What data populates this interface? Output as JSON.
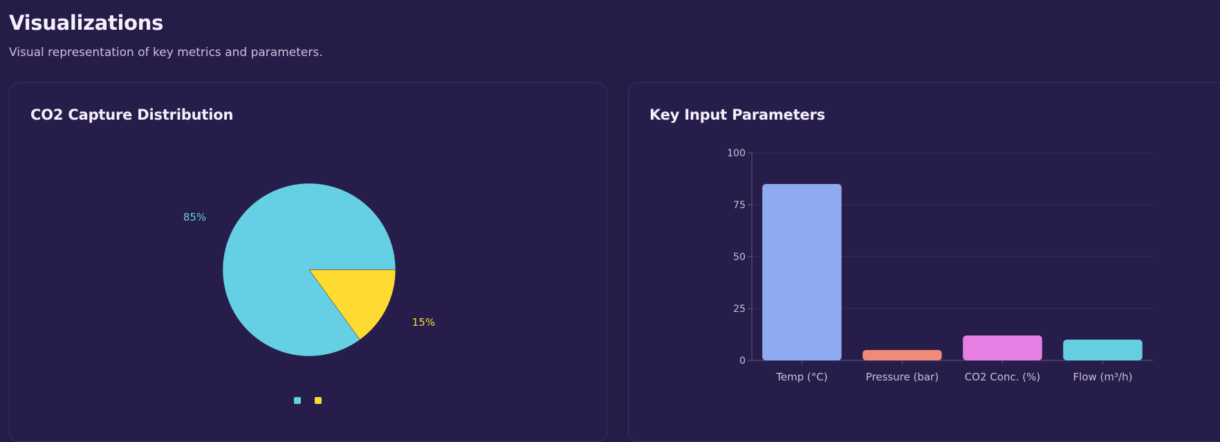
{
  "header": {
    "title": "Visualizations",
    "subtitle": "Visual representation of key metrics and parameters."
  },
  "panels": {
    "left": {
      "title": "CO2 Capture Distribution"
    },
    "right": {
      "title": "Key Input Parameters"
    }
  },
  "colors": {
    "background": "#261c48",
    "pie_captured": "#65cfe3",
    "pie_remaining": "#fddb31",
    "bar_temp": "#8eaaf0",
    "bar_pressure": "#ee8b79",
    "bar_co2": "#e680e5",
    "bar_flow": "#65cee1"
  },
  "chart_data": [
    {
      "type": "pie",
      "title": "CO2 Capture Distribution",
      "slices": [
        {
          "label": "85%",
          "value": 85,
          "color": "#65cfe3"
        },
        {
          "label": "15%",
          "value": 15,
          "color": "#fddb31"
        }
      ],
      "legend": "bottom-center"
    },
    {
      "type": "bar",
      "title": "Key Input Parameters",
      "categories": [
        "Temp (°C)",
        "Pressure (bar)",
        "CO2 Conc. (%)",
        "Flow (m³/h)"
      ],
      "values": [
        85,
        5,
        12,
        10
      ],
      "colors": [
        "#8eaaf0",
        "#ee8b79",
        "#e680e5",
        "#65cee1"
      ],
      "ylim": [
        0,
        100
      ],
      "yticks": [
        "0",
        "25",
        "50",
        "75",
        "100"
      ],
      "grid": true
    }
  ]
}
